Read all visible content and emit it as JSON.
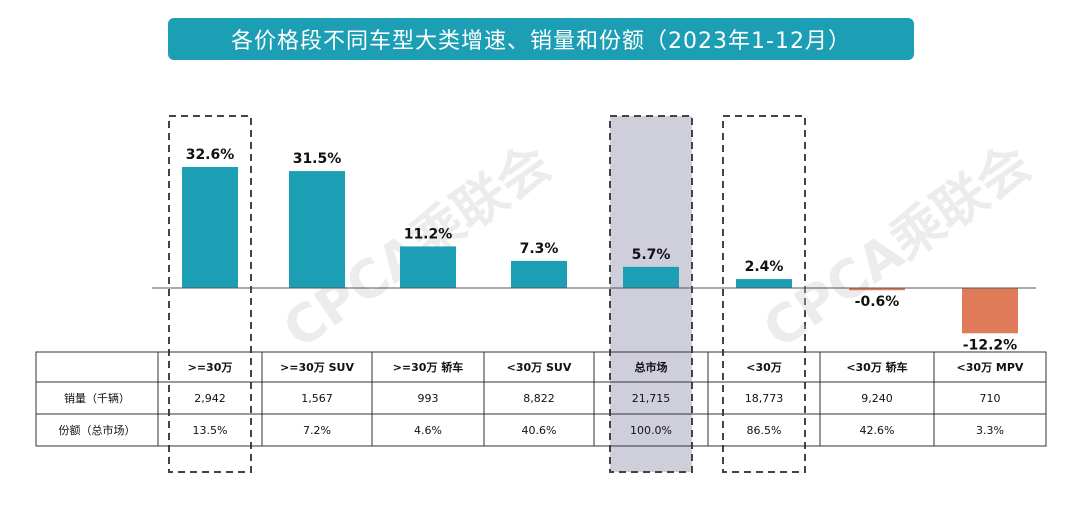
{
  "title": "各价格段不同车型大类增速、销量和份额（2023年1-12月）",
  "watermark": "CPCA乘联会",
  "colors": {
    "banner": "#1c9fb5",
    "positive": "#1c9fb5",
    "negative": "#e07b5a",
    "highlight_fill": "#cfcfdc",
    "dash": "#444444"
  },
  "chart_data": {
    "type": "bar",
    "categories": [
      ">=30万",
      ">=30万 SUV",
      ">=30万 轿车",
      "<30万 SUV",
      "总市场",
      "<30万",
      "<30万 轿车",
      "<30万 MPV"
    ],
    "values": [
      32.6,
      31.5,
      11.2,
      7.3,
      5.7,
      2.4,
      -0.6,
      -12.2
    ],
    "value_labels": [
      "32.6%",
      "31.5%",
      "11.2%",
      "7.3%",
      "5.7%",
      "2.4%",
      "-0.6%",
      "-12.2%"
    ],
    "ylim": [
      -12.2,
      32.6
    ],
    "highlighted": [
      ">=30万",
      "总市场",
      "<30万"
    ]
  },
  "table": {
    "rows": [
      {
        "label": "销量（千辆）",
        "values": [
          "2,942",
          "1,567",
          "993",
          "8,822",
          "21,715",
          "18,773",
          "9,240",
          "710"
        ]
      },
      {
        "label": "份额（总市场）",
        "values": [
          "13.5%",
          "7.2%",
          "4.6%",
          "40.6%",
          "100.0%",
          "86.5%",
          "42.6%",
          "3.3%"
        ]
      }
    ]
  }
}
